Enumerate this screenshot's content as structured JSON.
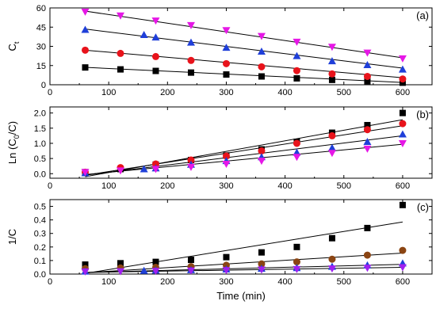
{
  "chart_data": [
    {
      "panel": "(a)",
      "type": "scatter",
      "ylabel_main": "C",
      "ylabel_sub": "t",
      "ylim": [
        0,
        60
      ],
      "yticks": [
        0,
        15,
        30,
        45,
        60
      ],
      "xlim": [
        0,
        650
      ],
      "xticks": [
        0,
        100,
        200,
        300,
        400,
        500,
        600
      ],
      "series": [
        {
          "marker": "square",
          "color": "#000000",
          "x": [
            60,
            120,
            180,
            240,
            300,
            360,
            420,
            480,
            540,
            600
          ],
          "y": [
            13.5,
            12,
            10.8,
            9.5,
            8,
            6.5,
            5,
            3.8,
            2.8,
            1.6
          ]
        },
        {
          "marker": "circle",
          "color": "#e8131b",
          "x": [
            60,
            120,
            180,
            240,
            300,
            360,
            420,
            480,
            540,
            600
          ],
          "y": [
            27,
            24.5,
            22,
            19,
            16.5,
            14,
            11,
            8.5,
            6.5,
            4.5
          ]
        },
        {
          "marker": "triangle-up",
          "color": "#1f3fd9",
          "x": [
            60,
            160,
            180,
            240,
            300,
            360,
            420,
            480,
            540,
            600
          ],
          "y": [
            43,
            39,
            37,
            33,
            29,
            26,
            22.5,
            18.5,
            15.5,
            12
          ]
        },
        {
          "marker": "triangle-down",
          "color": "#e617e6",
          "x": [
            60,
            120,
            180,
            240,
            300,
            360,
            420,
            480,
            540,
            600
          ],
          "y": [
            57,
            54,
            50,
            46.5,
            42.5,
            38,
            33.5,
            29.5,
            25,
            20.5
          ]
        }
      ],
      "fits": [
        {
          "x": [
            60,
            600
          ],
          "y": [
            13.6,
            1.8
          ]
        },
        {
          "x": [
            60,
            600
          ],
          "y": [
            27,
            5.5
          ]
        },
        {
          "x": [
            60,
            600
          ],
          "y": [
            43.5,
            13
          ]
        },
        {
          "x": [
            60,
            600
          ],
          "y": [
            57.5,
            21
          ]
        }
      ]
    },
    {
      "panel": "(b)",
      "type": "scatter",
      "ylabel_main": "Ln (C",
      "ylabel_sub": "0",
      "ylabel_tail": "/C)",
      "ylim": [
        -0.15,
        2.2
      ],
      "yticks": [
        0.0,
        0.5,
        1.0,
        1.5,
        2.0
      ],
      "ytick_labels": [
        "0.0",
        "0.5",
        "1.0",
        "1.5",
        "2.0"
      ],
      "xlim": [
        0,
        650
      ],
      "xticks": [
        0,
        100,
        200,
        300,
        400,
        500,
        600
      ],
      "series": [
        {
          "marker": "square",
          "color": "#000000",
          "x": [
            60,
            120,
            180,
            240,
            300,
            360,
            420,
            480,
            540,
            600
          ],
          "y": [
            0.05,
            0.15,
            0.3,
            0.45,
            0.6,
            0.8,
            1.05,
            1.35,
            1.6,
            2.0
          ]
        },
        {
          "marker": "circle",
          "color": "#e8131b",
          "x": [
            60,
            120,
            180,
            240,
            300,
            360,
            420,
            480,
            540,
            600
          ],
          "y": [
            0.05,
            0.2,
            0.32,
            0.45,
            0.58,
            0.75,
            1.0,
            1.25,
            1.45,
            1.65
          ]
        },
        {
          "marker": "triangle-up",
          "color": "#1f3fd9",
          "x": [
            60,
            160,
            180,
            240,
            300,
            360,
            420,
            480,
            540,
            600
          ],
          "y": [
            0.02,
            0.15,
            0.18,
            0.3,
            0.42,
            0.55,
            0.7,
            0.85,
            1.05,
            1.3
          ]
        },
        {
          "marker": "triangle-down",
          "color": "#e617e6",
          "x": [
            60,
            120,
            180,
            240,
            300,
            360,
            420,
            480,
            540,
            600
          ],
          "y": [
            0.05,
            0.1,
            0.15,
            0.22,
            0.32,
            0.42,
            0.55,
            0.68,
            0.82,
            1.0
          ]
        }
      ],
      "fits": [
        {
          "x": [
            60,
            600
          ],
          "y": [
            -0.1,
            1.78
          ]
        },
        {
          "x": [
            60,
            600
          ],
          "y": [
            -0.05,
            1.58
          ]
        },
        {
          "x": [
            60,
            600
          ],
          "y": [
            -0.05,
            1.25
          ]
        },
        {
          "x": [
            60,
            600
          ],
          "y": [
            -0.03,
            0.97
          ]
        }
      ]
    },
    {
      "panel": "(c)",
      "type": "scatter",
      "ylabel_main": "1/C",
      "ylim": [
        0,
        0.55
      ],
      "yticks": [
        0.0,
        0.1,
        0.2,
        0.3,
        0.4,
        0.5
      ],
      "ytick_labels": [
        "0.0",
        "0.1",
        "0.2",
        "0.3",
        "0.4",
        "0.5"
      ],
      "xlim": [
        0,
        650
      ],
      "xticks": [
        0,
        100,
        200,
        300,
        400,
        500,
        600
      ],
      "xtick_labels": [
        "0",
        "100",
        "200",
        "300",
        "400",
        "500",
        "600"
      ],
      "xlabel": "Time (min)",
      "series": [
        {
          "marker": "square",
          "color": "#000000",
          "x": [
            60,
            120,
            180,
            240,
            300,
            360,
            420,
            480,
            540,
            600
          ],
          "y": [
            0.07,
            0.08,
            0.09,
            0.105,
            0.125,
            0.16,
            0.2,
            0.265,
            0.34,
            0.51
          ]
        },
        {
          "marker": "circle",
          "color": "#8b4513",
          "x": [
            60,
            120,
            180,
            240,
            300,
            360,
            420,
            480,
            540,
            600
          ],
          "y": [
            0.04,
            0.045,
            0.05,
            0.055,
            0.065,
            0.075,
            0.09,
            0.11,
            0.14,
            0.175
          ]
        },
        {
          "marker": "triangle-up",
          "color": "#1f3fd9",
          "x": [
            60,
            160,
            180,
            240,
            300,
            360,
            420,
            480,
            540,
            600
          ],
          "y": [
            0.02,
            0.025,
            0.027,
            0.03,
            0.035,
            0.04,
            0.045,
            0.055,
            0.065,
            0.08
          ]
        },
        {
          "marker": "triangle-down",
          "color": "#a020f0",
          "x": [
            60,
            120,
            180,
            240,
            300,
            360,
            420,
            480,
            540,
            600
          ],
          "y": [
            0.018,
            0.02,
            0.022,
            0.025,
            0.028,
            0.032,
            0.036,
            0.04,
            0.045,
            0.05
          ]
        }
      ],
      "fits": [
        {
          "x": [
            60,
            600
          ],
          "y": [
            0.005,
            0.385
          ]
        },
        {
          "x": [
            60,
            600
          ],
          "y": [
            0.01,
            0.155
          ]
        },
        {
          "x": [
            60,
            600
          ],
          "y": [
            0.012,
            0.072
          ]
        },
        {
          "x": [
            60,
            600
          ],
          "y": [
            0.012,
            0.05
          ]
        }
      ]
    }
  ]
}
